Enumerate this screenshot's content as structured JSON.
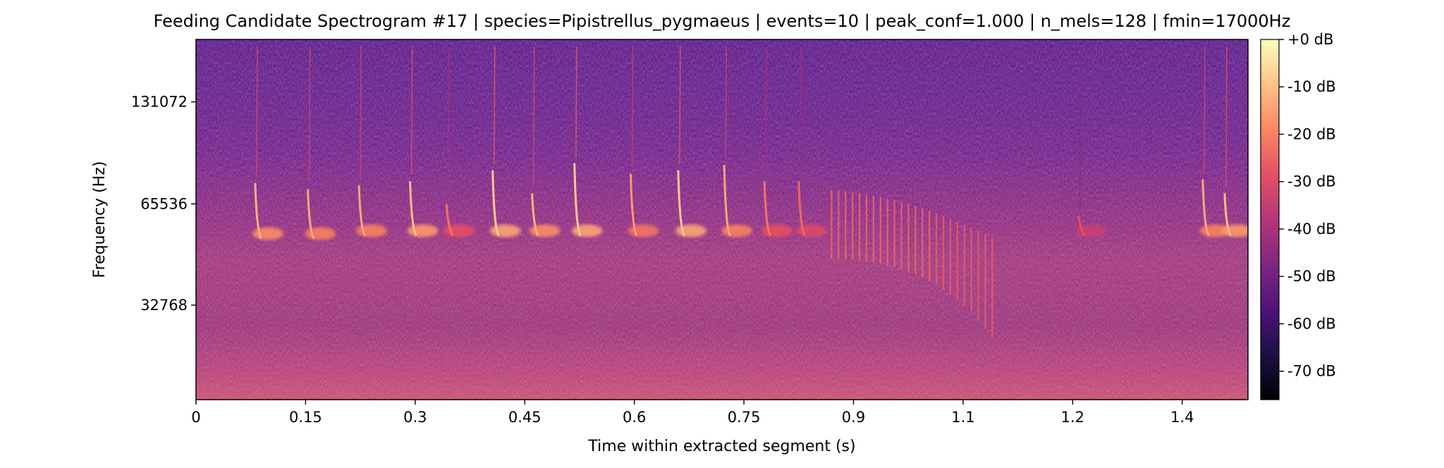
{
  "chart_data": {
    "type": "heatmap",
    "title": "Feeding Candidate Spectrogram #17 | species=Pipistrellus_pygmaeus | events=10 | peak_conf=1.000 | n_mels=128 | fmin=17000Hz",
    "xlabel": "Time within extracted segment (s)",
    "ylabel": "Frequency (Hz)",
    "xlim": [
      0,
      1.44
    ],
    "x_ticks": [
      0,
      0.15,
      0.3,
      0.45,
      0.6,
      0.75,
      0.9,
      1.05,
      1.2,
      1.35
    ],
    "x_tick_labels": [
      "0",
      "0.15",
      "0.3",
      "0.45",
      "0.6",
      "0.75",
      "0.9",
      "1.1",
      "1.2",
      "1.4"
    ],
    "y_scale": "mel",
    "y_ticks": [
      32768,
      65536,
      131072
    ],
    "y_tick_labels": [
      "32768",
      "65536",
      "131072"
    ],
    "colormap": "magma",
    "colorbar": {
      "ticks": [
        0,
        -10,
        -20,
        -30,
        -40,
        -50,
        -60,
        -70
      ],
      "tick_labels": [
        "+0 dB",
        "-10 dB",
        "-20 dB",
        "-30 dB",
        "-40 dB",
        "-50 dB",
        "-60 dB",
        "-70 dB"
      ],
      "range": [
        -76,
        0
      ]
    },
    "pulses": [
      {
        "t": 0.083,
        "f_top": 75000,
        "f_bottom": 52000,
        "peak_db": -12
      },
      {
        "t": 0.155,
        "f_top": 72000,
        "f_bottom": 52000,
        "peak_db": -14
      },
      {
        "t": 0.225,
        "f_top": 74000,
        "f_bottom": 53000,
        "peak_db": -14
      },
      {
        "t": 0.295,
        "f_top": 76000,
        "f_bottom": 53000,
        "peak_db": -10
      },
      {
        "t": 0.345,
        "f_top": 65000,
        "f_bottom": 53000,
        "peak_db": -22
      },
      {
        "t": 0.408,
        "f_top": 82000,
        "f_bottom": 53000,
        "peak_db": -8
      },
      {
        "t": 0.462,
        "f_top": 70000,
        "f_bottom": 53000,
        "peak_db": -12
      },
      {
        "t": 0.52,
        "f_top": 86000,
        "f_bottom": 53000,
        "peak_db": -8
      },
      {
        "t": 0.597,
        "f_top": 80000,
        "f_bottom": 53000,
        "peak_db": -16
      },
      {
        "t": 0.662,
        "f_top": 82000,
        "f_bottom": 53000,
        "peak_db": -8
      },
      {
        "t": 0.725,
        "f_top": 85000,
        "f_bottom": 53000,
        "peak_db": -14
      },
      {
        "t": 0.78,
        "f_top": 76000,
        "f_bottom": 53000,
        "peak_db": -22
      },
      {
        "t": 0.827,
        "f_top": 76000,
        "f_bottom": 53000,
        "peak_db": -24
      },
      {
        "t": 1.21,
        "f_top": 60000,
        "f_bottom": 53000,
        "peak_db": -28
      },
      {
        "t": 1.38,
        "f_top": 77000,
        "f_bottom": 53000,
        "peak_db": -14
      },
      {
        "t": 1.41,
        "f_top": 70000,
        "f_bottom": 53000,
        "peak_db": -10
      }
    ],
    "buzz": {
      "t_start": 0.87,
      "t_end": 1.09,
      "f_top": 72000,
      "f_bottom_start": 45000,
      "f_bottom_end": 26000,
      "peak_db": -24
    }
  }
}
